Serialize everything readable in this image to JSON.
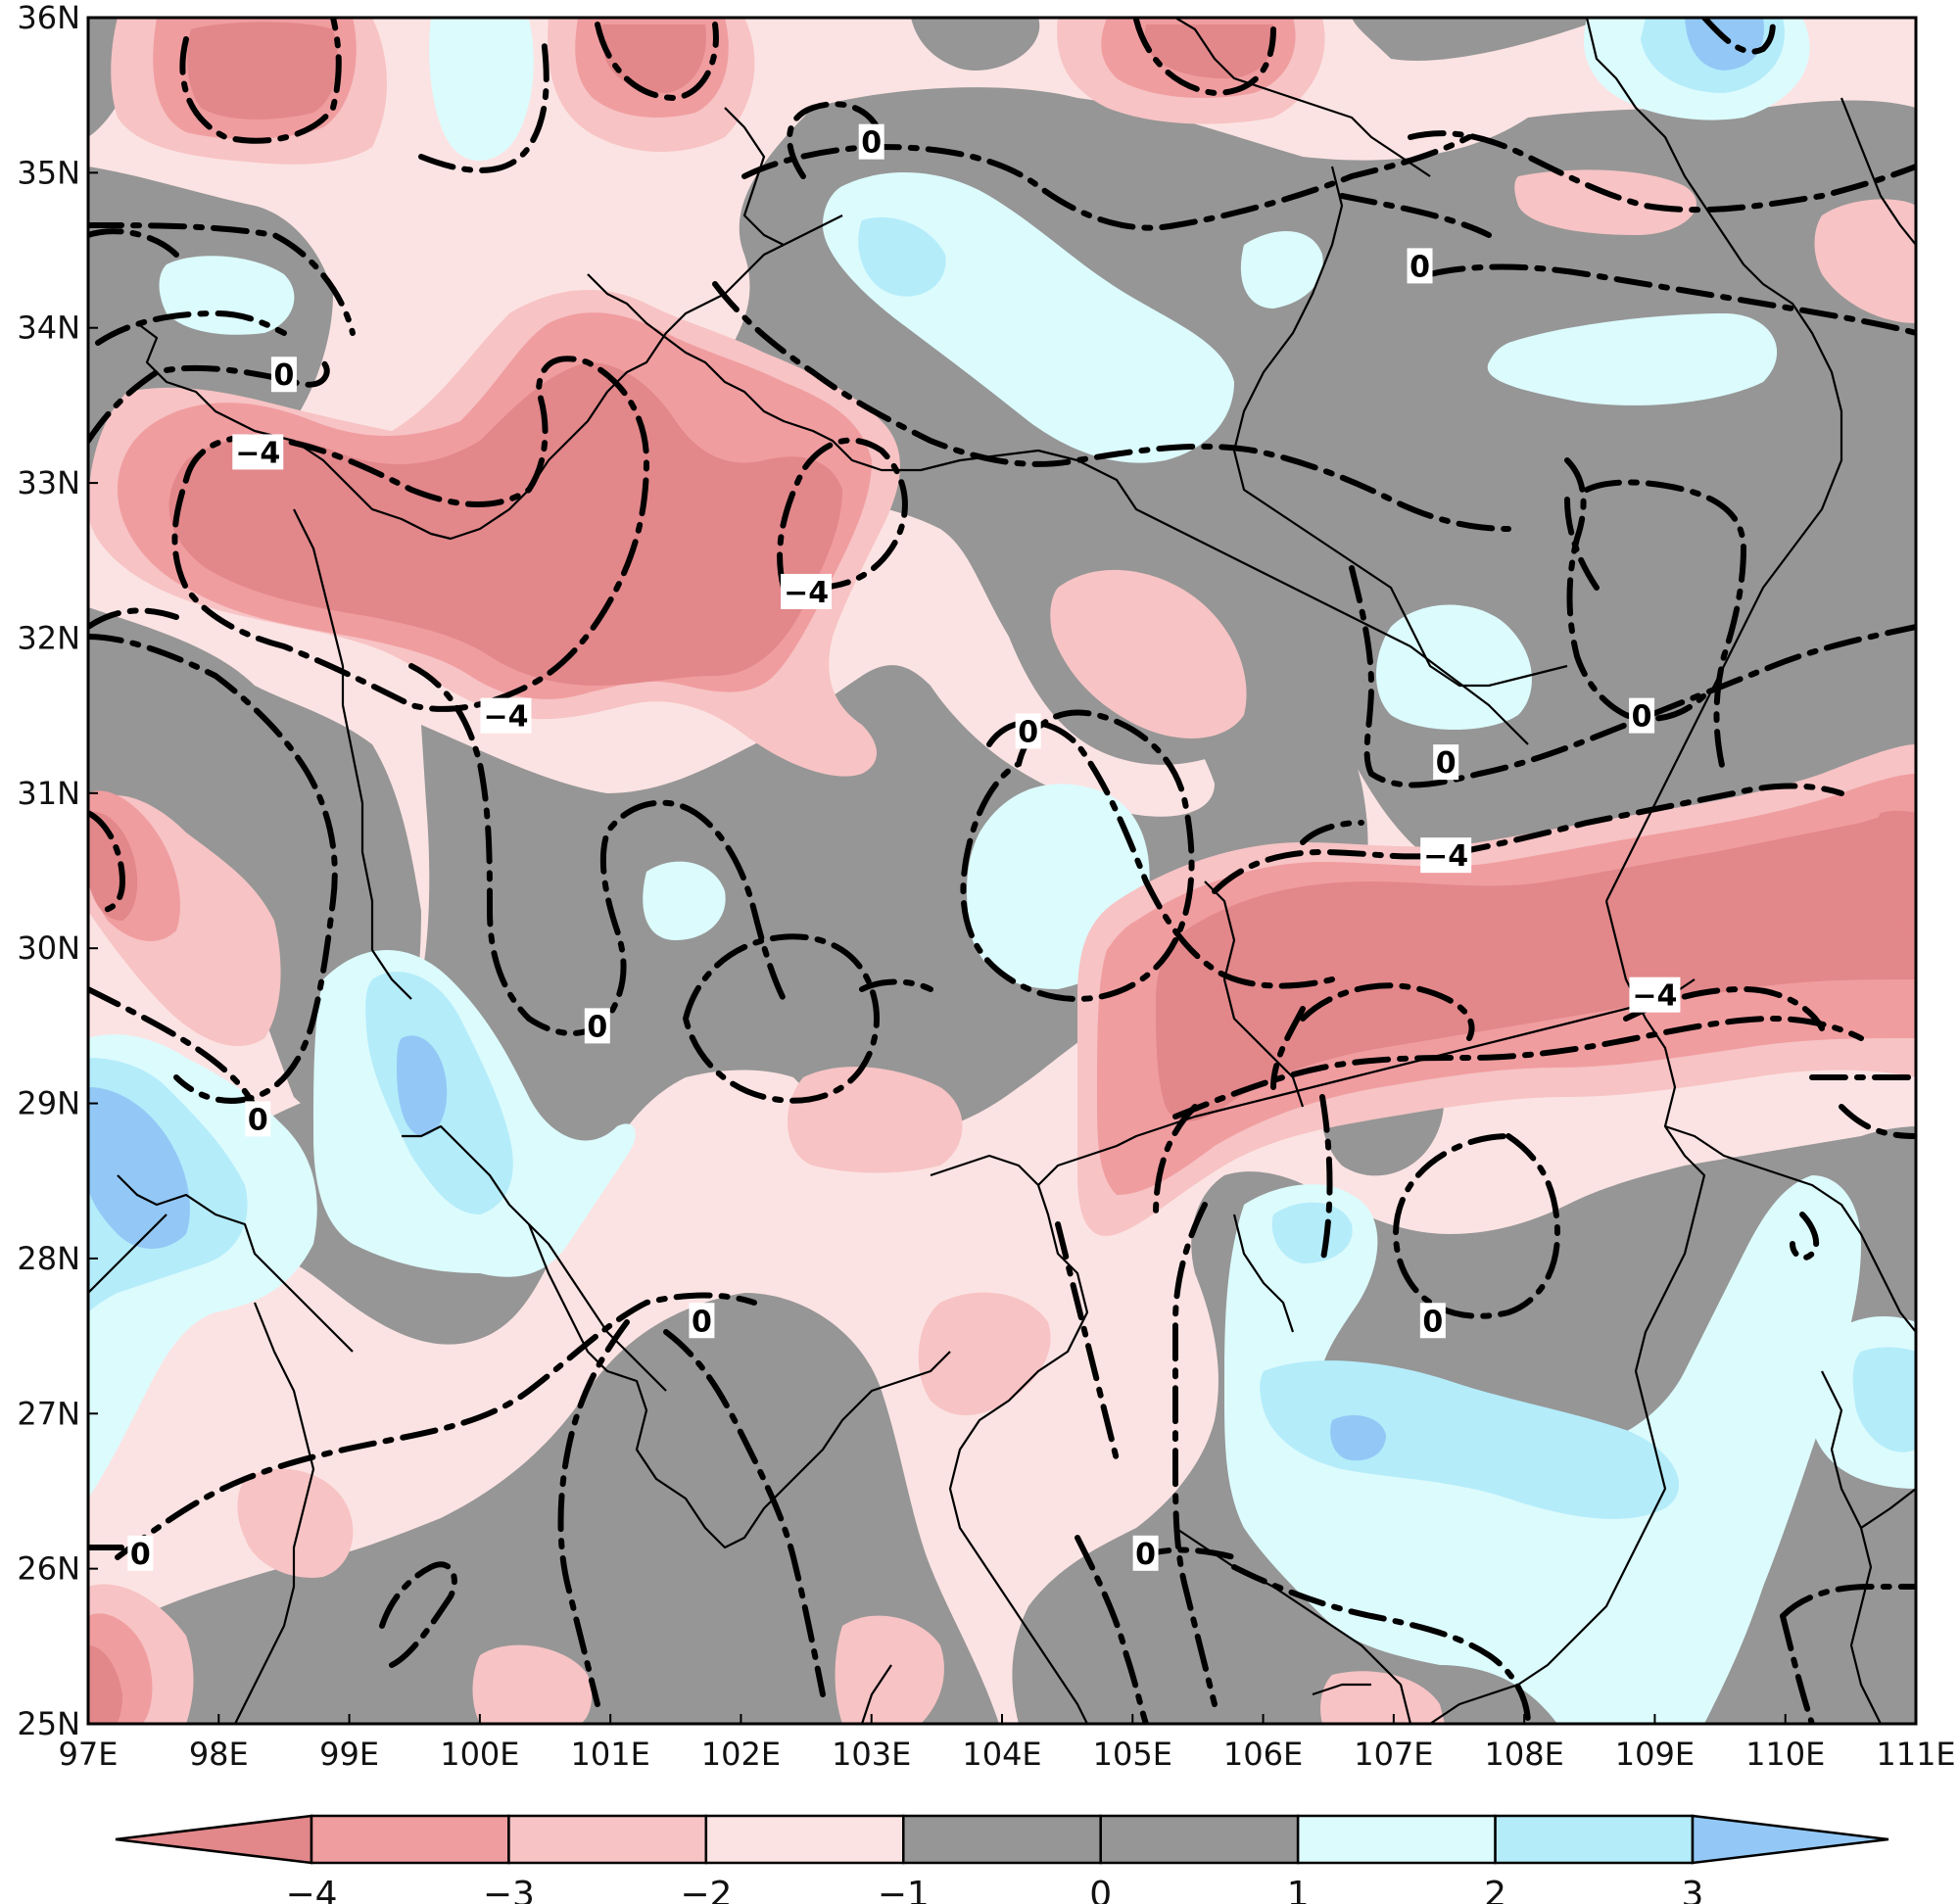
{
  "map": {
    "x_ticks": [
      "97E",
      "98E",
      "99E",
      "100E",
      "101E",
      "102E",
      "103E",
      "104E",
      "105E",
      "106E",
      "107E",
      "108E",
      "109E",
      "110E",
      "111E"
    ],
    "y_ticks": [
      "25N",
      "26N",
      "27N",
      "28N",
      "29N",
      "30N",
      "31N",
      "32N",
      "33N",
      "34N",
      "35N",
      "36N"
    ],
    "lon_range": [
      97,
      111
    ],
    "lat_range": [
      25,
      36
    ]
  },
  "colors": {
    "lt_m4": "#e2878a",
    "m4_m3": "#f09da0",
    "m3_m2": "#f7c3c4",
    "m2_m1": "#fce3e3",
    "m1_0": "#969696",
    "0_1": "#969696",
    "1_2": "#dcfbfd",
    "2_3": "#b4ecfa",
    "gt_3": "#93c8f6"
  },
  "colorbar": {
    "labels": [
      "−4",
      "−3",
      "−2",
      "−1",
      "0",
      "1",
      "2",
      "3"
    ]
  },
  "contour_labels": [
    {
      "text": "0",
      "lon": 98.5,
      "lat": 33.7
    },
    {
      "text": "−4",
      "lon": 98.3,
      "lat": 33.2
    },
    {
      "text": "0",
      "lon": 103.0,
      "lat": 35.2
    },
    {
      "text": "0",
      "lon": 107.2,
      "lat": 34.4
    },
    {
      "text": "−4",
      "lon": 100.2,
      "lat": 31.5
    },
    {
      "text": "−4",
      "lon": 102.5,
      "lat": 32.3
    },
    {
      "text": "0",
      "lon": 104.2,
      "lat": 31.4
    },
    {
      "text": "0",
      "lon": 107.4,
      "lat": 31.2
    },
    {
      "text": "0",
      "lon": 108.9,
      "lat": 31.5
    },
    {
      "text": "−4",
      "lon": 107.4,
      "lat": 30.6
    },
    {
      "text": "−4",
      "lon": 109.0,
      "lat": 29.7
    },
    {
      "text": "0",
      "lon": 100.9,
      "lat": 29.5
    },
    {
      "text": "0",
      "lon": 98.3,
      "lat": 28.9
    },
    {
      "text": "0",
      "lon": 101.7,
      "lat": 27.6
    },
    {
      "text": "0",
      "lon": 107.3,
      "lat": 27.6
    },
    {
      "text": "0",
      "lon": 97.4,
      "lat": 26.1
    },
    {
      "text": "0",
      "lon": 105.1,
      "lat": 26.1
    }
  ]
}
